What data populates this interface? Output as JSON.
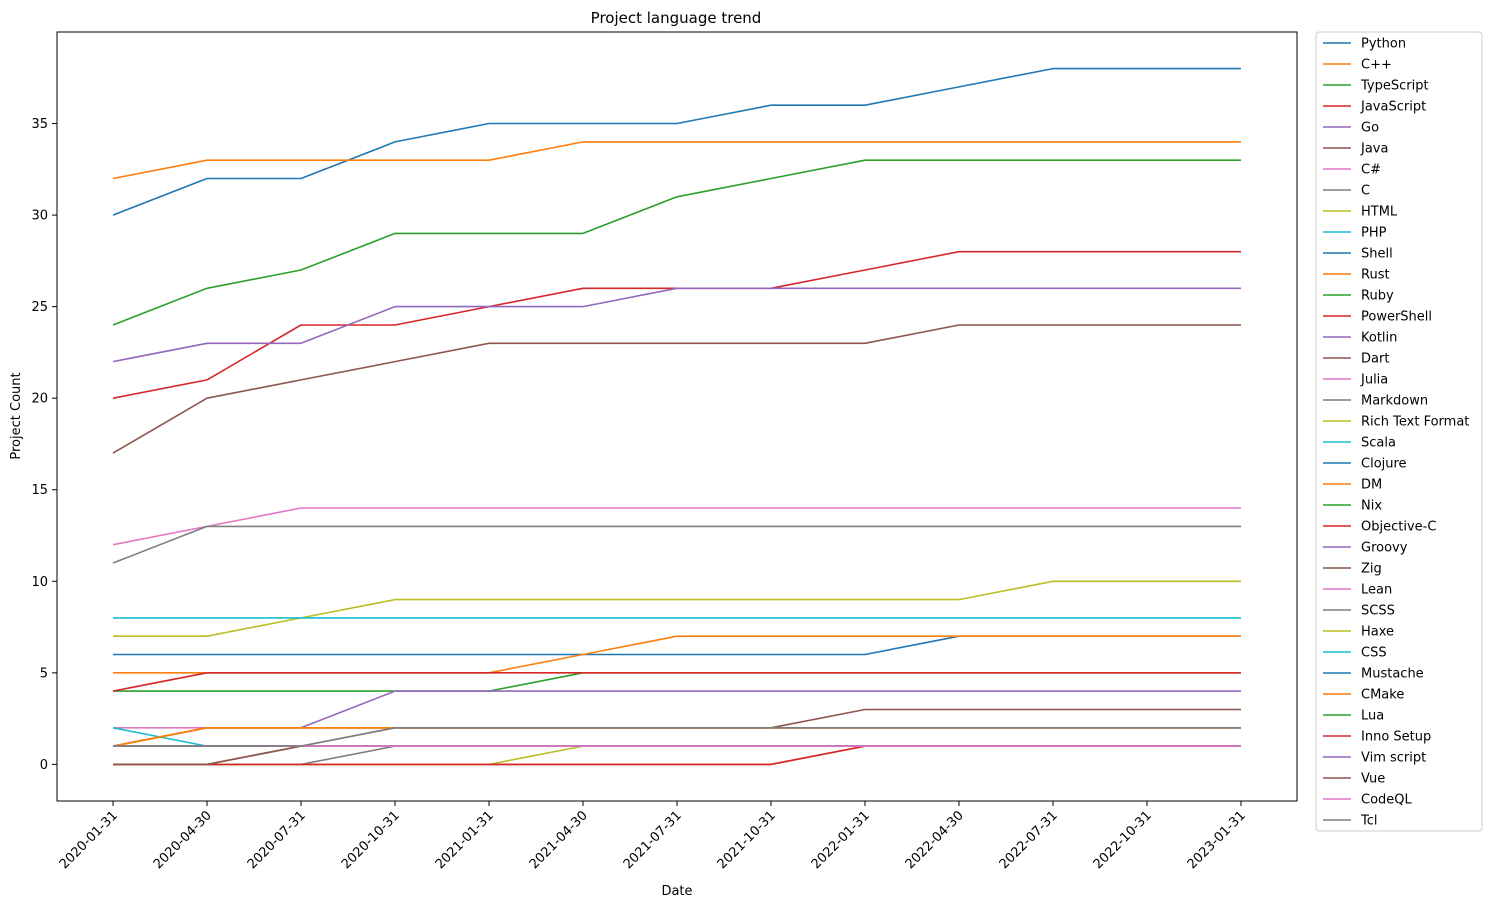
{
  "chart_data": {
    "type": "line",
    "title": "Project language trend",
    "xlabel": "Date",
    "ylabel": "Project Count",
    "x": [
      "2020-01-31",
      "2020-04-30",
      "2020-07-31",
      "2020-10-31",
      "2021-01-31",
      "2021-04-30",
      "2021-07-31",
      "2021-10-31",
      "2022-01-31",
      "2022-04-30",
      "2022-07-31",
      "2022-10-31",
      "2023-01-31"
    ],
    "ylim": [
      -2,
      40
    ],
    "yticks": [
      0,
      5,
      10,
      15,
      20,
      25,
      30,
      35
    ],
    "grid": false,
    "legend_position": "outside-right",
    "series": [
      {
        "name": "Python",
        "color": "#1f77b4",
        "values": [
          30,
          32,
          32,
          34,
          35,
          35,
          35,
          36,
          36,
          37,
          38,
          38,
          38
        ]
      },
      {
        "name": "C++",
        "color": "#ff7f0e",
        "values": [
          32,
          33,
          33,
          33,
          33,
          34,
          34,
          34,
          34,
          34,
          34,
          34,
          34
        ]
      },
      {
        "name": "TypeScript",
        "color": "#2ca02c",
        "values": [
          24,
          26,
          27,
          29,
          29,
          29,
          31,
          32,
          33,
          33,
          33,
          33,
          33
        ]
      },
      {
        "name": "JavaScript",
        "color": "#d62728",
        "values": [
          20,
          21,
          24,
          24,
          25,
          26,
          26,
          26,
          27,
          28,
          28,
          28,
          28
        ]
      },
      {
        "name": "Go",
        "color": "#9467bd",
        "values": [
          22,
          23,
          23,
          25,
          25,
          25,
          26,
          26,
          26,
          26,
          26,
          26,
          26
        ]
      },
      {
        "name": "Java",
        "color": "#8c564b",
        "values": [
          17,
          20,
          21,
          22,
          23,
          23,
          23,
          23,
          23,
          24,
          24,
          24,
          24
        ]
      },
      {
        "name": "C#",
        "color": "#e377c2",
        "values": [
          12,
          13,
          14,
          14,
          14,
          14,
          14,
          14,
          14,
          14,
          14,
          14,
          14
        ]
      },
      {
        "name": "C",
        "color": "#7f7f7f",
        "values": [
          11,
          13,
          13,
          13,
          13,
          13,
          13,
          13,
          13,
          13,
          13,
          13,
          13
        ]
      },
      {
        "name": "HTML",
        "color": "#bcbd22",
        "values": [
          7,
          7,
          8,
          9,
          9,
          9,
          9,
          9,
          9,
          9,
          10,
          10,
          10
        ]
      },
      {
        "name": "PHP",
        "color": "#17becf",
        "values": [
          8,
          8,
          8,
          8,
          8,
          8,
          8,
          8,
          8,
          8,
          8,
          8,
          8
        ]
      },
      {
        "name": "Shell",
        "color": "#1f77b4",
        "values": [
          6,
          6,
          6,
          6,
          6,
          6,
          6,
          6,
          6,
          7,
          7,
          7,
          7
        ]
      },
      {
        "name": "Rust",
        "color": "#ff7f0e",
        "values": [
          5,
          5,
          5,
          5,
          5,
          6,
          7,
          7,
          7,
          7,
          7,
          7,
          7
        ]
      },
      {
        "name": "Ruby",
        "color": "#2ca02c",
        "values": [
          4,
          4,
          4,
          4,
          4,
          5,
          5,
          5,
          5,
          5,
          5,
          5,
          5
        ]
      },
      {
        "name": "PowerShell",
        "color": "#d62728",
        "values": [
          4,
          5,
          5,
          5,
          5,
          5,
          5,
          5,
          5,
          5,
          5,
          5,
          5
        ]
      },
      {
        "name": "Kotlin",
        "color": "#9467bd",
        "values": [
          1,
          2,
          2,
          4,
          4,
          4,
          4,
          4,
          4,
          4,
          4,
          4,
          4
        ]
      },
      {
        "name": "Dart",
        "color": "#8c564b",
        "values": [
          1,
          2,
          2,
          2,
          2,
          2,
          2,
          2,
          3,
          3,
          3,
          3,
          3
        ]
      },
      {
        "name": "Julia",
        "color": "#e377c2",
        "values": [
          2,
          2,
          2,
          2,
          2,
          2,
          2,
          2,
          2,
          2,
          2,
          2,
          2
        ]
      },
      {
        "name": "Markdown",
        "color": "#7f7f7f",
        "values": [
          1,
          1,
          1,
          1,
          1,
          1,
          1,
          1,
          1,
          1,
          1,
          1,
          1
        ]
      },
      {
        "name": "Rich Text Format",
        "color": "#bcbd22",
        "values": [
          1,
          2,
          2,
          2,
          2,
          2,
          2,
          2,
          2,
          2,
          2,
          2,
          2
        ]
      },
      {
        "name": "Scala",
        "color": "#17becf",
        "values": [
          2,
          1,
          1,
          1,
          1,
          1,
          1,
          1,
          1,
          1,
          1,
          1,
          1
        ]
      },
      {
        "name": "Clojure",
        "color": "#1f77b4",
        "values": [
          1,
          1,
          1,
          1,
          1,
          1,
          1,
          1,
          1,
          1,
          1,
          1,
          1
        ]
      },
      {
        "name": "DM",
        "color": "#ff7f0e",
        "values": [
          1,
          2,
          2,
          2,
          2,
          2,
          2,
          2,
          2,
          2,
          2,
          2,
          2
        ]
      },
      {
        "name": "Nix",
        "color": "#2ca02c",
        "values": [
          1,
          1,
          1,
          1,
          1,
          1,
          1,
          1,
          1,
          1,
          1,
          1,
          1
        ]
      },
      {
        "name": "Objective-C",
        "color": "#d62728",
        "values": [
          0,
          0,
          0,
          0,
          0,
          0,
          0,
          0,
          1,
          1,
          1,
          1,
          1
        ]
      },
      {
        "name": "Groovy",
        "color": "#9467bd",
        "values": [
          1,
          1,
          1,
          1,
          1,
          1,
          1,
          1,
          1,
          1,
          1,
          1,
          1
        ]
      },
      {
        "name": "Zig",
        "color": "#8c564b",
        "values": [
          0,
          0,
          1,
          1,
          1,
          1,
          1,
          1,
          1,
          1,
          1,
          1,
          1
        ]
      },
      {
        "name": "Lean",
        "color": "#e377c2",
        "values": [
          1,
          1,
          1,
          1,
          1,
          1,
          1,
          1,
          1,
          1,
          1,
          1,
          1
        ]
      },
      {
        "name": "SCSS",
        "color": "#7f7f7f",
        "values": [
          0,
          0,
          0,
          1,
          1,
          1,
          1,
          1,
          1,
          1,
          1,
          1,
          1
        ]
      },
      {
        "name": "Haxe",
        "color": "#bcbd22",
        "values": [
          0,
          0,
          0,
          0,
          0,
          1,
          1,
          1,
          1,
          1,
          1,
          1,
          1
        ]
      },
      {
        "name": "CSS",
        "color": "#17becf",
        "values": [
          1,
          1,
          1,
          1,
          1,
          1,
          1,
          1,
          1,
          1,
          1,
          1,
          1
        ]
      },
      {
        "name": "Mustache",
        "color": "#1f77b4",
        "values": [
          1,
          1,
          1,
          1,
          1,
          1,
          1,
          1,
          1,
          1,
          1,
          1,
          1
        ]
      },
      {
        "name": "CMake",
        "color": "#ff7f0e",
        "values": [
          1,
          2,
          2,
          2,
          2,
          2,
          2,
          2,
          2,
          2,
          2,
          2,
          2
        ]
      },
      {
        "name": "Lua",
        "color": "#2ca02c",
        "values": [
          1,
          1,
          1,
          1,
          1,
          1,
          1,
          1,
          1,
          1,
          1,
          1,
          1
        ]
      },
      {
        "name": "Inno Setup",
        "color": "#d62728",
        "values": [
          0,
          0,
          0,
          0,
          0,
          0,
          0,
          0,
          1,
          1,
          1,
          1,
          1
        ]
      },
      {
        "name": "Vim script",
        "color": "#9467bd",
        "values": [
          1,
          1,
          1,
          1,
          1,
          1,
          1,
          1,
          1,
          1,
          1,
          1,
          1
        ]
      },
      {
        "name": "Vue",
        "color": "#8c564b",
        "values": [
          0,
          0,
          1,
          2,
          2,
          2,
          2,
          2,
          2,
          2,
          2,
          2,
          2
        ]
      },
      {
        "name": "CodeQL",
        "color": "#e377c2",
        "values": [
          1,
          1,
          1,
          1,
          1,
          1,
          1,
          1,
          1,
          1,
          1,
          1,
          1
        ]
      },
      {
        "name": "Tcl",
        "color": "#7f7f7f",
        "values": [
          1,
          1,
          1,
          2,
          2,
          2,
          2,
          2,
          2,
          2,
          2,
          2,
          2
        ]
      }
    ]
  }
}
